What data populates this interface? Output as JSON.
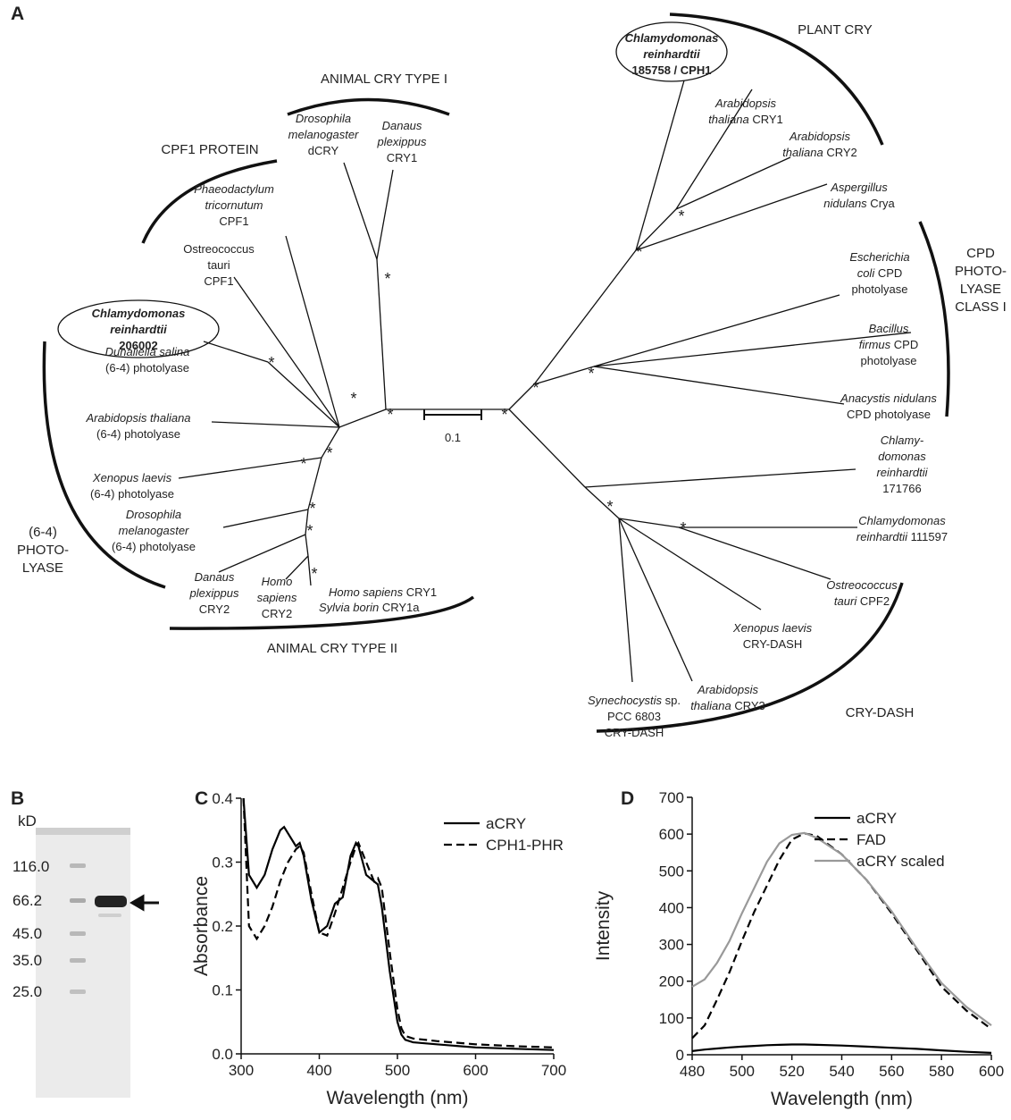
{
  "tree": {
    "panel_label": "A",
    "support_marker": "*",
    "scale_bar": "0.1",
    "clades": [
      {
        "lines": [
          "PLANT CRY"
        ]
      },
      {
        "lines": [
          "ANIMAL CRY TYPE I"
        ]
      },
      {
        "lines": [
          "CPF1 PROTEIN"
        ]
      },
      {
        "lines": [
          "CPD",
          "PHOTO-",
          "LYASE",
          "CLASS I"
        ]
      },
      {
        "lines": [
          "(6-4)",
          "PHOTO-",
          "LYASE"
        ]
      },
      {
        "lines": [
          "ANIMAL CRY TYPE II"
        ]
      },
      {
        "lines": [
          "CRY-DASH"
        ]
      }
    ],
    "leaves": [
      {
        "lines": [
          [
            {
              "text": "Chlamydomonas",
              "style": "bold-italic"
            }
          ],
          [
            {
              "text": "reinhardtii",
              "style": "bold-italic"
            }
          ],
          [
            {
              "text": "185758 / CPH1",
              "style": "bold"
            }
          ]
        ]
      },
      {
        "lines": [
          [
            {
              "text": "Arabidopsis",
              "style": "italic"
            }
          ],
          [
            {
              "text": "thaliana",
              "style": "italic"
            },
            {
              "text": " CRY1",
              "style": "plain"
            }
          ]
        ]
      },
      {
        "lines": [
          [
            {
              "text": "Arabidopsis",
              "style": "italic"
            }
          ],
          [
            {
              "text": "thaliana",
              "style": "italic"
            },
            {
              "text": " CRY2",
              "style": "plain"
            }
          ]
        ]
      },
      {
        "lines": [
          [
            {
              "text": "Aspergillus",
              "style": "italic"
            }
          ],
          [
            {
              "text": "nidulans",
              "style": "italic"
            },
            {
              "text": " Crya",
              "style": "plain"
            }
          ]
        ]
      },
      {
        "lines": [
          [
            {
              "text": "Escherichia",
              "style": "italic"
            }
          ],
          [
            {
              "text": "coli",
              "style": "italic"
            },
            {
              "text": " CPD",
              "style": "plain"
            }
          ],
          [
            {
              "text": "photolyase",
              "style": "plain"
            }
          ]
        ]
      },
      {
        "lines": [
          [
            {
              "text": "Bacillus",
              "style": "italic"
            }
          ],
          [
            {
              "text": "firmus",
              "style": "italic"
            },
            {
              "text": " CPD",
              "style": "plain"
            }
          ],
          [
            {
              "text": "photolyase",
              "style": "plain"
            }
          ]
        ]
      },
      {
        "lines": [
          [
            {
              "text": "Anacystis nidulans",
              "style": "italic"
            }
          ],
          [
            {
              "text": "CPD photolyase",
              "style": "plain"
            }
          ]
        ]
      },
      {
        "lines": [
          [
            {
              "text": "Chlamy-",
              "style": "italic"
            }
          ],
          [
            {
              "text": "domonas",
              "style": "italic"
            }
          ],
          [
            {
              "text": "reinhardtii",
              "style": "italic"
            }
          ],
          [
            {
              "text": "171766",
              "style": "plain"
            }
          ]
        ]
      },
      {
        "lines": [
          [
            {
              "text": "Chlamydomonas",
              "style": "italic"
            }
          ],
          [
            {
              "text": "reinhardtii",
              "style": "italic"
            },
            {
              "text": " 111597",
              "style": "plain"
            }
          ]
        ]
      },
      {
        "lines": [
          [
            {
              "text": "Ostreococcus",
              "style": "italic"
            }
          ],
          [
            {
              "text": "tauri",
              "style": "italic"
            },
            {
              "text": " CPF2",
              "style": "plain"
            }
          ]
        ]
      },
      {
        "lines": [
          [
            {
              "text": "Xenopus laevis",
              "style": "italic"
            }
          ],
          [
            {
              "text": "CRY-DASH",
              "style": "plain"
            }
          ]
        ]
      },
      {
        "lines": [
          [
            {
              "text": "Arabidopsis",
              "style": "italic"
            }
          ],
          [
            {
              "text": "thaliana",
              "style": "italic"
            },
            {
              "text": " CRY3",
              "style": "plain"
            }
          ]
        ]
      },
      {
        "lines": [
          [
            {
              "text": "Synechocystis",
              "style": "italic"
            },
            {
              "text": " sp.",
              "style": "plain"
            }
          ],
          [
            {
              "text": "PCC 6803",
              "style": "plain"
            }
          ],
          [
            {
              "text": "CRY-DASH",
              "style": "plain"
            }
          ]
        ]
      },
      {
        "lines": [
          [
            {
              "text": "Homo sapiens",
              "style": "italic"
            },
            {
              "text": " CRY1",
              "style": "plain"
            }
          ]
        ]
      },
      {
        "lines": [
          [
            {
              "text": "Sylvia borin",
              "style": "italic"
            },
            {
              "text": " CRY1a",
              "style": "plain"
            }
          ]
        ]
      },
      {
        "lines": [
          [
            {
              "text": "Homo",
              "style": "italic"
            }
          ],
          [
            {
              "text": "sapiens",
              "style": "italic"
            }
          ],
          [
            {
              "text": "CRY2",
              "style": "plain"
            }
          ]
        ]
      },
      {
        "lines": [
          [
            {
              "text": "Danaus",
              "style": "italic"
            }
          ],
          [
            {
              "text": "plexippus",
              "style": "italic"
            }
          ],
          [
            {
              "text": "CRY2",
              "style": "plain"
            }
          ]
        ]
      },
      {
        "lines": [
          [
            {
              "text": "Drosophila",
              "style": "italic"
            }
          ],
          [
            {
              "text": "melanogaster",
              "style": "italic"
            }
          ],
          [
            {
              "text": "(6-4) photolyase",
              "style": "plain"
            }
          ]
        ]
      },
      {
        "lines": [
          [
            {
              "text": "Xenopus laevis",
              "style": "italic"
            }
          ],
          [
            {
              "text": "(6-4) photolyase",
              "style": "plain"
            }
          ]
        ]
      },
      {
        "lines": [
          [
            {
              "text": "Arabidopsis thaliana",
              "style": "italic"
            }
          ],
          [
            {
              "text": "(6-4) photolyase",
              "style": "plain"
            }
          ]
        ]
      },
      {
        "lines": [
          [
            {
              "text": "Dunaliella salina",
              "style": "italic"
            }
          ],
          [
            {
              "text": "(6-4) photolyase",
              "style": "plain"
            }
          ]
        ]
      },
      {
        "lines": [
          [
            {
              "text": "Chlamydomonas",
              "style": "bold-italic"
            }
          ],
          [
            {
              "text": "reinhardtii",
              "style": "bold-italic"
            }
          ],
          [
            {
              "text": "206002",
              "style": "bold"
            }
          ]
        ]
      },
      {
        "lines": [
          [
            {
              "text": "Ostreococcus",
              "style": "plain"
            }
          ],
          [
            {
              "text": "tauri",
              "style": "plain"
            }
          ],
          [
            {
              "text": "CPF1",
              "style": "plain"
            }
          ]
        ]
      },
      {
        "lines": [
          [
            {
              "text": "Phaeodactylum",
              "style": "italic"
            }
          ],
          [
            {
              "text": "tricornutum",
              "style": "italic"
            }
          ],
          [
            {
              "text": "CPF1",
              "style": "plain"
            }
          ]
        ]
      },
      {
        "lines": [
          [
            {
              "text": "Drosophila",
              "style": "italic"
            }
          ],
          [
            {
              "text": "melanogaster",
              "style": "italic"
            }
          ],
          [
            {
              "text": "dCRY",
              "style": "plain"
            }
          ]
        ]
      },
      {
        "lines": [
          [
            {
              "text": "Danaus",
              "style": "italic"
            }
          ],
          [
            {
              "text": "plexippus",
              "style": "italic"
            }
          ],
          [
            {
              "text": "CRY1",
              "style": "plain"
            }
          ]
        ]
      }
    ]
  },
  "gel": {
    "panel_label": "B",
    "unit": "kD",
    "markers": [
      "116.0",
      "66.2",
      "45.0",
      "35.0",
      "25.0"
    ]
  },
  "chart_data": [
    {
      "type": "line",
      "panel_label": "C",
      "xlabel": "Wavelength (nm)",
      "ylabel": "Absorbance",
      "xlim": [
        300,
        700
      ],
      "ylim": [
        0,
        0.4
      ],
      "xticks": [
        300,
        400,
        500,
        600,
        700
      ],
      "yticks": [
        {
          "value": 0,
          "label": "0.0"
        },
        0.1,
        0.2,
        0.3,
        0.4
      ],
      "legend": "upper right",
      "x": [
        303,
        310,
        320,
        330,
        340,
        350,
        355,
        360,
        370,
        375,
        380,
        390,
        400,
        410,
        420,
        430,
        440,
        447,
        450,
        460,
        470,
        475,
        480,
        490,
        500,
        505,
        510,
        520,
        550,
        600,
        650,
        700
      ],
      "series": [
        {
          "name": "aCRY",
          "color": "#000000",
          "line_style": "solid",
          "values": [
            0.4,
            0.28,
            0.26,
            0.28,
            0.32,
            0.35,
            0.355,
            0.345,
            0.325,
            0.33,
            0.31,
            0.24,
            0.19,
            0.2,
            0.235,
            0.245,
            0.31,
            0.33,
            0.325,
            0.28,
            0.27,
            0.265,
            0.23,
            0.13,
            0.05,
            0.03,
            0.022,
            0.018,
            0.015,
            0.01,
            0.008,
            0.006
          ]
        },
        {
          "name": "CPH1-PHR",
          "color": "#000000",
          "line_style": "dashed",
          "values": [
            0.4,
            0.2,
            0.18,
            0.2,
            0.23,
            0.27,
            0.285,
            0.3,
            0.32,
            0.325,
            0.315,
            0.25,
            0.19,
            0.185,
            0.22,
            0.26,
            0.3,
            0.325,
            0.33,
            0.3,
            0.27,
            0.275,
            0.26,
            0.16,
            0.07,
            0.04,
            0.028,
            0.024,
            0.02,
            0.015,
            0.012,
            0.01
          ]
        }
      ]
    },
    {
      "type": "line",
      "panel_label": "D",
      "xlabel": "Wavelength (nm)",
      "ylabel": "Intensity",
      "xlim": [
        480,
        600
      ],
      "ylim": [
        0,
        700
      ],
      "xticks": [
        480,
        500,
        520,
        540,
        560,
        580,
        600
      ],
      "yticks": [
        0,
        100,
        200,
        300,
        400,
        500,
        600,
        700
      ],
      "legend": "upper right",
      "x": [
        480,
        485,
        490,
        495,
        500,
        505,
        510,
        515,
        520,
        525,
        530,
        540,
        550,
        560,
        570,
        580,
        590,
        600
      ],
      "series": [
        {
          "name": "aCRY",
          "color": "#000000",
          "line_style": "solid",
          "values": [
            10,
            14,
            17,
            20,
            22,
            24,
            26,
            27,
            28,
            28,
            27,
            25,
            22,
            19,
            16,
            12,
            8,
            5
          ]
        },
        {
          "name": "FAD",
          "color": "#000000",
          "line_style": "dashed",
          "values": [
            45,
            80,
            150,
            225,
            310,
            390,
            460,
            530,
            585,
            602,
            595,
            545,
            475,
            385,
            285,
            185,
            120,
            70
          ]
        },
        {
          "name": "aCRY scaled",
          "color": "#999999",
          "line_style": "solid",
          "values": [
            185,
            205,
            250,
            310,
            385,
            455,
            525,
            575,
            598,
            603,
            590,
            545,
            475,
            390,
            290,
            195,
            130,
            80
          ]
        }
      ]
    }
  ]
}
